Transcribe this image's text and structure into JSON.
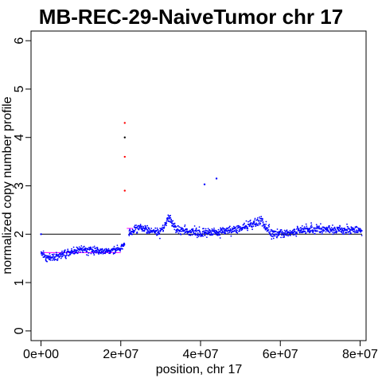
{
  "chart_data": {
    "type": "scatter",
    "title": "MB-REC-29-NaiveTumor chr 17",
    "xlabel": "position, chr 17",
    "ylabel": "normalized copy number profile",
    "xlim": [
      -2500000,
      81500000
    ],
    "ylim": [
      -0.2,
      6.2
    ],
    "x_ticks": [
      0,
      20000000,
      40000000,
      60000000,
      80000000
    ],
    "x_tick_labels": [
      "0e+00",
      "2e+07",
      "4e+07",
      "6e+07",
      "8e+07"
    ],
    "y_ticks": [
      0,
      1,
      2,
      3,
      4,
      5,
      6
    ],
    "y_tick_labels": [
      "0",
      "1",
      "2",
      "3",
      "4",
      "5",
      "6"
    ],
    "grid": false,
    "colors": {
      "points": "#0000ff",
      "outliers": "#ff0000",
      "baseline": "#000000",
      "segment": "#ff00ff"
    },
    "baseline": {
      "y": 2,
      "x_range": [
        0,
        20000000
      ]
    },
    "baseline_right": {
      "y": 2,
      "x_range": [
        22000000,
        80500000
      ]
    },
    "segments": [
      {
        "x": [
          0,
          20000000
        ],
        "y": 1.62
      },
      {
        "x": [
          21500000,
          23000000
        ],
        "y": 2.12
      }
    ],
    "series": [
      {
        "region": "p-arm",
        "x_range": [
          0,
          21000000
        ],
        "profile": [
          [
            0,
            1.62
          ],
          [
            1500000,
            1.5
          ],
          [
            4000000,
            1.55
          ],
          [
            7000000,
            1.62
          ],
          [
            10000000,
            1.68
          ],
          [
            14000000,
            1.66
          ],
          [
            17000000,
            1.64
          ],
          [
            20000000,
            1.72
          ],
          [
            21000000,
            1.8
          ]
        ],
        "spread": 0.07
      },
      {
        "region": "q-arm",
        "x_range": [
          22000000,
          80500000
        ],
        "profile": [
          [
            22000000,
            2.0
          ],
          [
            25000000,
            2.15
          ],
          [
            27000000,
            2.08
          ],
          [
            30000000,
            2.05
          ],
          [
            32000000,
            2.35
          ],
          [
            34000000,
            2.1
          ],
          [
            40000000,
            2.02
          ],
          [
            45000000,
            2.05
          ],
          [
            50000000,
            2.12
          ],
          [
            55000000,
            2.28
          ],
          [
            58000000,
            2.0
          ],
          [
            63000000,
            2.05
          ],
          [
            68000000,
            2.12
          ],
          [
            72000000,
            2.1
          ],
          [
            76000000,
            2.08
          ],
          [
            80500000,
            2.08
          ]
        ],
        "spread": 0.09
      }
    ],
    "outliers": [
      {
        "x": 21000000,
        "y": 4.3,
        "color": "red"
      },
      {
        "x": 21000000,
        "y": 4.0,
        "color": "black"
      },
      {
        "x": 21000000,
        "y": 3.6,
        "color": "red"
      },
      {
        "x": 21000000,
        "y": 2.9,
        "color": "red"
      },
      {
        "x": 41000000,
        "y": 3.03,
        "color": "blue"
      },
      {
        "x": 44000000,
        "y": 3.15,
        "color": "blue"
      },
      {
        "x": 0,
        "y": 2.0,
        "color": "blue"
      }
    ]
  }
}
